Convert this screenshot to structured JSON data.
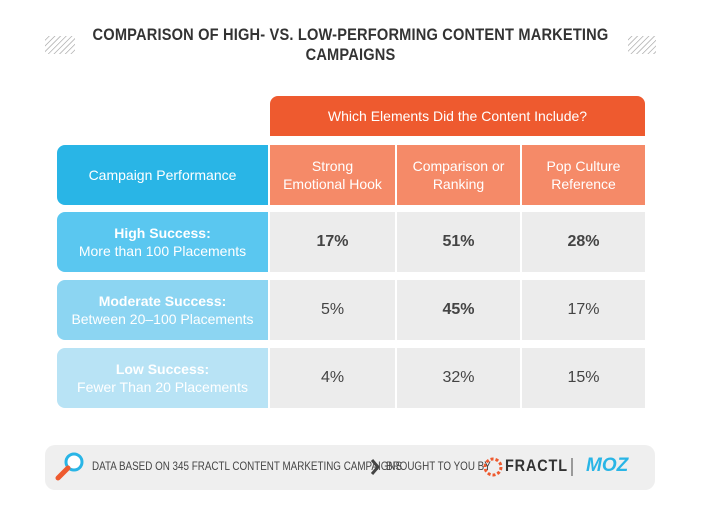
{
  "header": {
    "title": "COMPARISON OF HIGH- VS. LOW-PERFORMING CONTENT MARKETING CAMPAIGNS"
  },
  "table": {
    "group_header": "Which Elements Did the Content Include?",
    "columns": [
      "Campaign Performance",
      "Strong Emotional Hook",
      "Comparison or Ranking",
      "Pop Culture Reference"
    ],
    "rows": [
      {
        "label": "High Success:",
        "sublabel": "More than 100 Placements",
        "values": [
          "17%",
          "51%",
          "28%"
        ]
      },
      {
        "label": "Moderate Success:",
        "sublabel": "Between 20–100 Placements",
        "values": [
          "5%",
          "45%",
          "17%"
        ]
      },
      {
        "label": "Low Success:",
        "sublabel": "Fewer Than 20 Placements",
        "values": [
          "4%",
          "32%",
          "15%"
        ]
      }
    ]
  },
  "footer": {
    "source": "DATA BASED ON 345 FRACTL CONTENT MARKETING CAMPAIGNS",
    "credit": "BROUGHT TO YOU BY",
    "brands": [
      "FRACTL",
      "MOZ"
    ]
  }
}
